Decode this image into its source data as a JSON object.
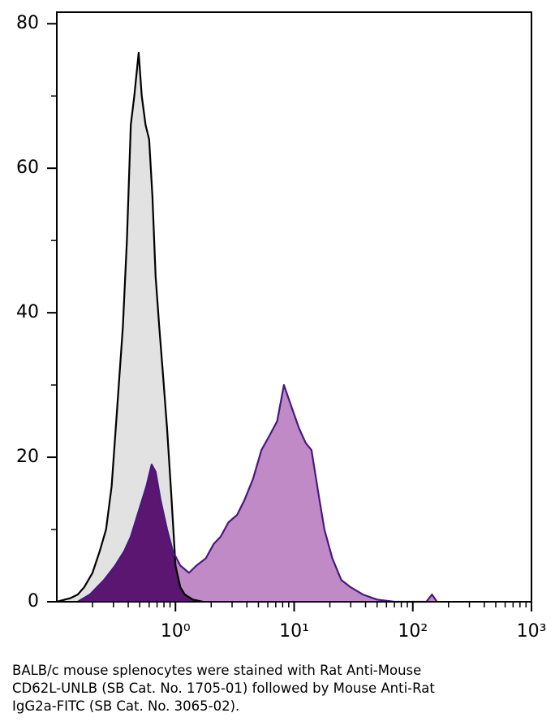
{
  "chart_data": {
    "type": "area",
    "xscale": "log",
    "xlim": [
      0.1,
      1000
    ],
    "xticks": [
      {
        "value": 1,
        "label": "10⁰"
      },
      {
        "value": 10,
        "label": "10¹"
      },
      {
        "value": 100,
        "label": "10²"
      },
      {
        "value": 1000,
        "label": "10³"
      }
    ],
    "ylim": [
      0,
      81.6
    ],
    "yticks": [
      0,
      20,
      40,
      60,
      80
    ],
    "overlap_color": "#5a1670",
    "series": [
      {
        "color": "#000000",
        "fill": "#e2e2e2",
        "x": [
          0.1,
          0.13,
          0.15,
          0.17,
          0.2,
          0.23,
          0.26,
          0.29,
          0.32,
          0.36,
          0.39,
          0.42,
          0.45,
          0.49,
          0.52,
          0.56,
          0.6,
          0.64,
          0.68,
          0.73,
          0.78,
          0.85,
          0.92,
          1.0,
          1.1,
          1.2,
          1.4,
          1.7
        ],
        "values": [
          0,
          0.5,
          1,
          2,
          4,
          7,
          10,
          16,
          26,
          38,
          50,
          66,
          70,
          76,
          70,
          66,
          64,
          56,
          45,
          38,
          32,
          24,
          15,
          5,
          2,
          1,
          0.3,
          0
        ]
      },
      {
        "color": "#4a1780",
        "fill": "#c08ac6",
        "x": [
          0.15,
          0.19,
          0.25,
          0.31,
          0.37,
          0.42,
          0.5,
          0.57,
          0.63,
          0.68,
          0.75,
          0.85,
          0.95,
          1.1,
          1.3,
          1.5,
          1.8,
          2.1,
          2.4,
          2.8,
          3.3,
          3.8,
          4.5,
          5.3,
          6.2,
          7.2,
          8.2,
          9.5,
          11,
          12.5,
          14,
          16,
          18,
          21,
          25,
          30,
          38,
          50,
          70,
          130,
          145,
          160
        ],
        "values": [
          0,
          1,
          3,
          5,
          7,
          9,
          13,
          16,
          19,
          18,
          14,
          10,
          7,
          5,
          4,
          5,
          6,
          8,
          9,
          11,
          12,
          14,
          17,
          21,
          23,
          25,
          30,
          27,
          24,
          22,
          21,
          15,
          10,
          6,
          3,
          2,
          1,
          0.3,
          0,
          0,
          1,
          0
        ]
      }
    ],
    "caption": [
      "BALB/c mouse splenocytes were stained with Rat Anti-Mouse",
      "CD62L-UNLB (SB Cat. No. 1705-01) followed by Mouse Anti-Rat",
      "IgG2a-FITC (SB Cat. No. 3065-02)."
    ]
  }
}
